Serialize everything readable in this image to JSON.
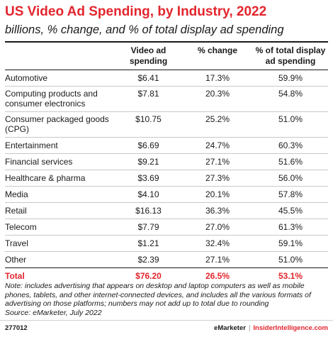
{
  "title": "US Video Ad Spending, by Industry, 2022",
  "subtitle": "billions, % change, and % of total display ad spending",
  "chart_data": {
    "type": "table",
    "columns": [
      "",
      "Video ad spending",
      "% change",
      "% of total display ad spending"
    ],
    "rows": [
      {
        "industry": "Automotive",
        "spending": "$6.41",
        "change": "17.3%",
        "share": "59.9%"
      },
      {
        "industry": "Computing products and consumer electronics",
        "spending": "$7.81",
        "change": "20.3%",
        "share": "54.8%"
      },
      {
        "industry": "Consumer packaged goods (CPG)",
        "spending": "$10.75",
        "change": "25.2%",
        "share": "51.0%"
      },
      {
        "industry": "Entertainment",
        "spending": "$6.69",
        "change": "24.7%",
        "share": "60.3%"
      },
      {
        "industry": "Financial services",
        "spending": "$9.21",
        "change": "27.1%",
        "share": "51.6%"
      },
      {
        "industry": "Healthcare & pharma",
        "spending": "$3.69",
        "change": "27.3%",
        "share": "56.0%"
      },
      {
        "industry": "Media",
        "spending": "$4.10",
        "change": "20.1%",
        "share": "57.8%"
      },
      {
        "industry": "Retail",
        "spending": "$16.13",
        "change": "36.3%",
        "share": "45.5%"
      },
      {
        "industry": "Telecom",
        "spending": "$7.79",
        "change": "27.0%",
        "share": "61.3%"
      },
      {
        "industry": "Travel",
        "spending": "$1.21",
        "change": "32.4%",
        "share": "59.1%"
      },
      {
        "industry": "Other",
        "spending": "$2.39",
        "change": "27.1%",
        "share": "51.0%"
      }
    ],
    "total": {
      "industry": "Total",
      "spending": "$76.20",
      "change": "26.5%",
      "share": "53.1%"
    }
  },
  "note": "Note: includes advertising that appears on desktop and laptop computers as well as mobile phones, tablets, and other internet-connected devices, and includes all the various formats of advertising on those platforms; numbers may not add up to total due to rounding",
  "source": "Source: eMarketer, July 2022",
  "footer": {
    "id": "277012",
    "brand": "eMarketer",
    "sep": "|",
    "brand2": "InsiderIntelligence.com"
  },
  "colors": {
    "accent": "#e3252d",
    "text": "#1a1a1a"
  }
}
